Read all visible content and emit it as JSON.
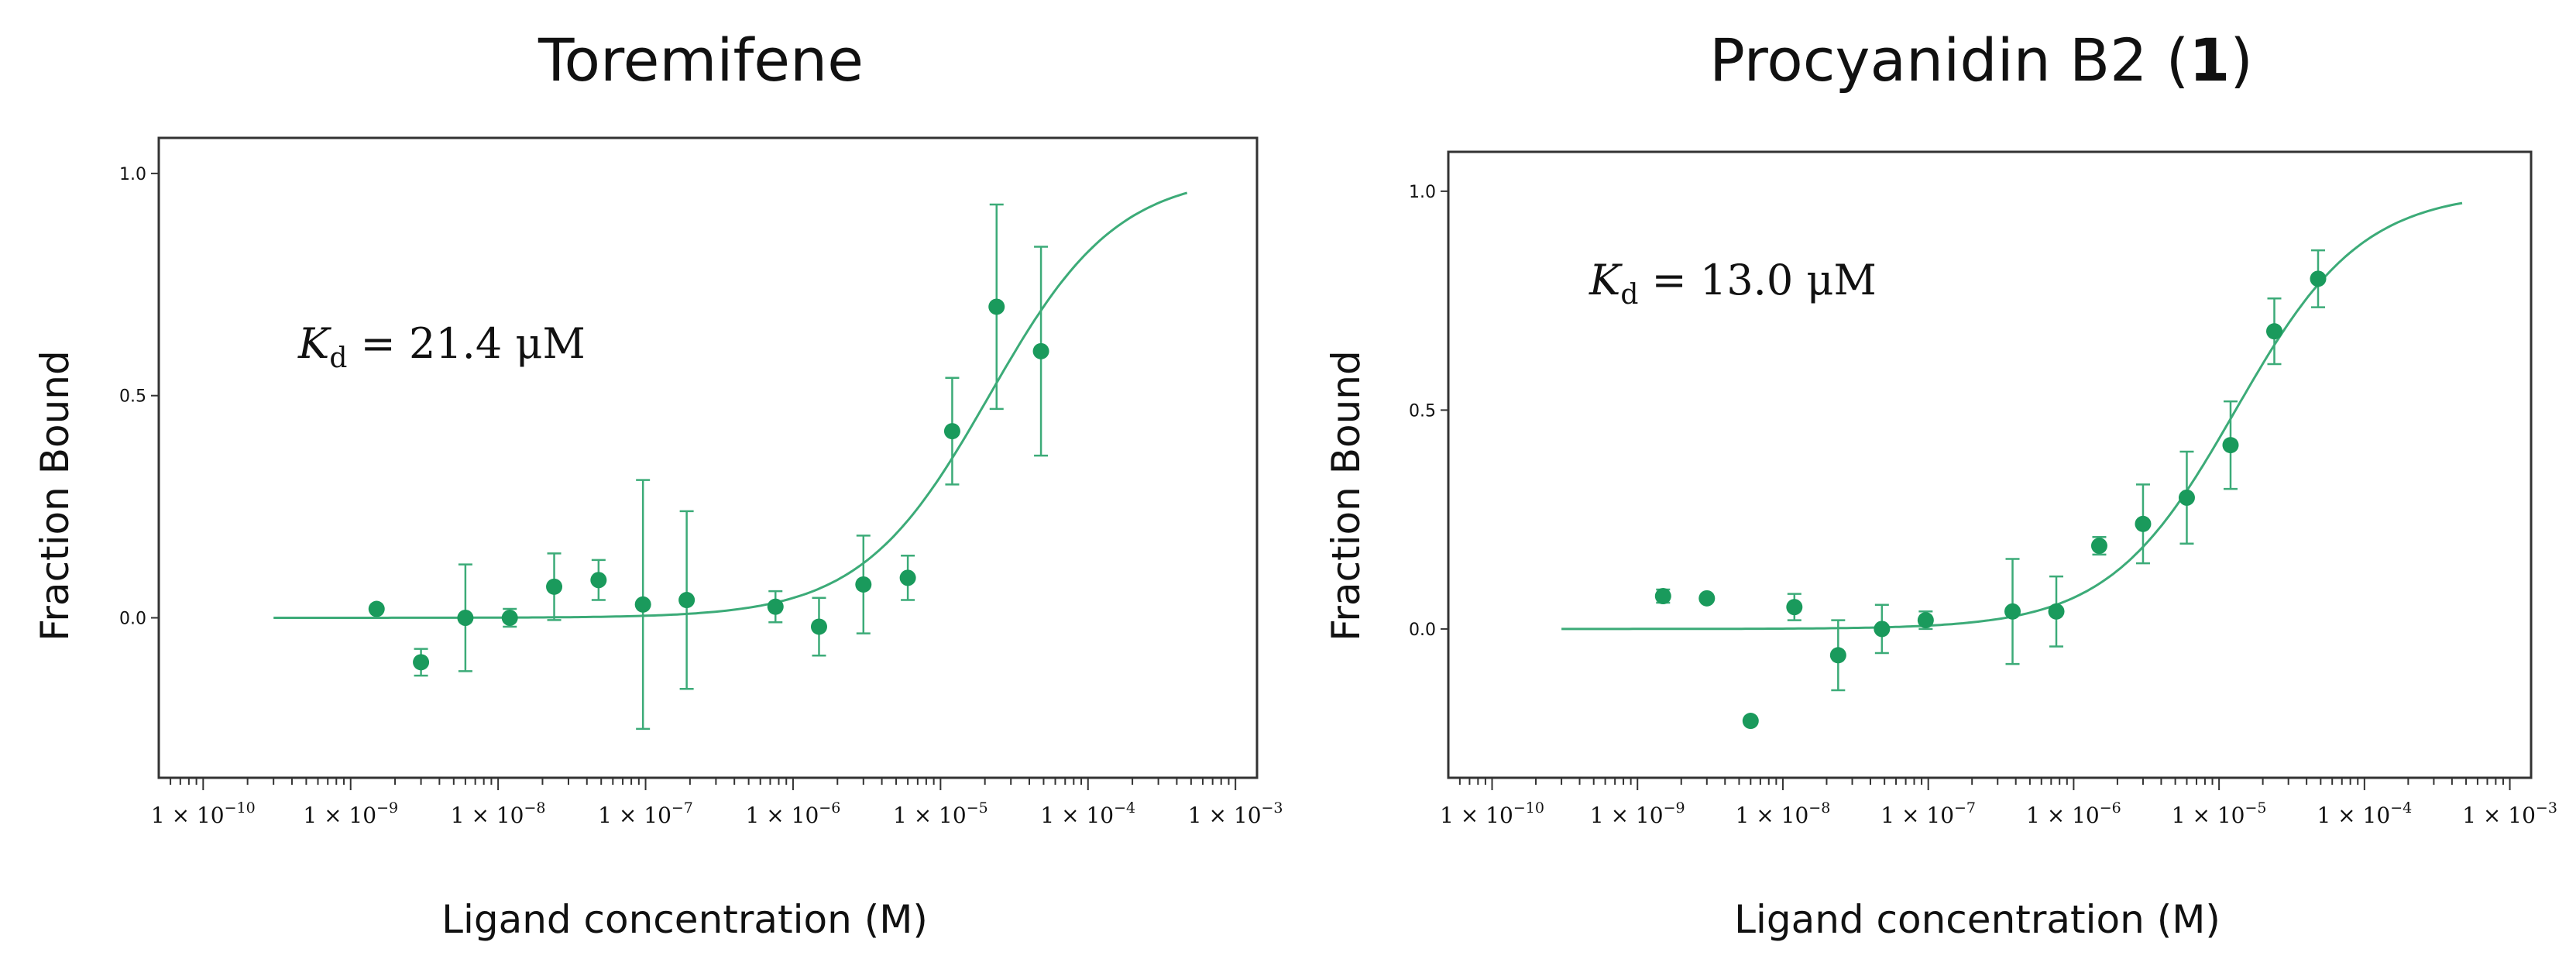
{
  "chart_data": [
    {
      "type": "scatter",
      "title": "Toremifene",
      "title_bold_suffix": "",
      "xlabel": "Ligand concentration (M)",
      "ylabel": "Fraction Bound",
      "x_scale": "log",
      "xlim": [
        5e-11,
        0.0014
      ],
      "ylim": [
        -0.36,
        1.08
      ],
      "yticks": [
        0.0,
        0.5,
        1.0
      ],
      "ytick_labels": [
        "0.0",
        "0.5",
        "1.0"
      ],
      "xticks": [
        1e-10,
        1e-09,
        1e-08,
        1e-07,
        1e-06,
        1e-05,
        0.0001,
        0.001
      ],
      "xtick_labels": [
        {
          "coef": "1 × 10",
          "exp": "−10"
        },
        {
          "coef": "1 × 10",
          "exp": "−9"
        },
        {
          "coef": "1 × 10",
          "exp": "−8"
        },
        {
          "coef": "1 × 10",
          "exp": "−7"
        },
        {
          "coef": "1 × 10",
          "exp": "−6"
        },
        {
          "coef": "1 × 10",
          "exp": "−5"
        },
        {
          "coef": "1 × 10",
          "exp": "−4"
        },
        {
          "coef": "1 × 10",
          "exp": "−3"
        }
      ],
      "kd_annotation": {
        "symbol": "K",
        "subscript": "d",
        "text": " = 21.4 μM"
      },
      "fit": {
        "model": "hill",
        "kd_M": 2.14e-05,
        "hill": 1.0,
        "x_range": [
          3e-10,
          0.00047
        ]
      },
      "color": "#1a9a5c",
      "fit_color": "#3cab78",
      "points": [
        {
          "x": 1.5e-09,
          "y": 0.02,
          "err": 0.0
        },
        {
          "x": 3e-09,
          "y": -0.1,
          "err": 0.03
        },
        {
          "x": 6e-09,
          "y": 0.0,
          "err": 0.12
        },
        {
          "x": 1.2e-08,
          "y": 0.0,
          "err": 0.02
        },
        {
          "x": 2.4e-08,
          "y": 0.07,
          "err": 0.075
        },
        {
          "x": 4.8e-08,
          "y": 0.085,
          "err": 0.045
        },
        {
          "x": 9.6e-08,
          "y": 0.03,
          "err": 0.28
        },
        {
          "x": 1.9e-07,
          "y": 0.04,
          "err": 0.2
        },
        {
          "x": 7.6e-07,
          "y": 0.025,
          "err": 0.035
        },
        {
          "x": 1.5e-06,
          "y": -0.02,
          "err": 0.065
        },
        {
          "x": 3e-06,
          "y": 0.075,
          "err": 0.11
        },
        {
          "x": 6e-06,
          "y": 0.09,
          "err": 0.05
        },
        {
          "x": 1.2e-05,
          "y": 0.42,
          "err": 0.12
        },
        {
          "x": 2.4e-05,
          "y": 0.7,
          "err": 0.23
        },
        {
          "x": 4.8e-05,
          "y": 0.6,
          "err": 0.235
        }
      ]
    },
    {
      "type": "scatter",
      "title": "Procyanidin B2 (",
      "title_bold_suffix": "1",
      "title_close": ")",
      "xlabel": "Ligand concentration (M)",
      "ylabel": "Fraction Bound",
      "x_scale": "log",
      "xlim": [
        5e-11,
        0.0014
      ],
      "ylim": [
        -0.34,
        1.09
      ],
      "yticks": [
        0.0,
        0.5,
        1.0
      ],
      "ytick_labels": [
        "0.0",
        "0.5",
        "1.0"
      ],
      "xticks": [
        1e-10,
        1e-09,
        1e-08,
        1e-07,
        1e-06,
        1e-05,
        0.0001,
        0.001
      ],
      "xtick_labels": [
        {
          "coef": "1 × 10",
          "exp": "−10"
        },
        {
          "coef": "1 × 10",
          "exp": "−9"
        },
        {
          "coef": "1 × 10",
          "exp": "−8"
        },
        {
          "coef": "1 × 10",
          "exp": "−7"
        },
        {
          "coef": "1 × 10",
          "exp": "−6"
        },
        {
          "coef": "1 × 10",
          "exp": "−5"
        },
        {
          "coef": "1 × 10",
          "exp": "−4"
        },
        {
          "coef": "1 × 10",
          "exp": "−3"
        }
      ],
      "kd_annotation": {
        "symbol": "K",
        "subscript": "d",
        "text": " = 13.0 μM"
      },
      "fit": {
        "model": "hill",
        "kd_M": 1.3e-05,
        "hill": 1.0,
        "x_range": [
          3e-10,
          0.00047
        ]
      },
      "color": "#1a9a5c",
      "fit_color": "#3cab78",
      "points": [
        {
          "x": 1.5e-09,
          "y": 0.075,
          "err": 0.015
        },
        {
          "x": 3e-09,
          "y": 0.07,
          "err": 0.0
        },
        {
          "x": 6e-09,
          "y": -0.21,
          "err": 0.0
        },
        {
          "x": 1.2e-08,
          "y": 0.05,
          "err": 0.03
        },
        {
          "x": 2.4e-08,
          "y": -0.06,
          "err": 0.08
        },
        {
          "x": 4.8e-08,
          "y": 0.0,
          "err": 0.055
        },
        {
          "x": 9.6e-08,
          "y": 0.02,
          "err": 0.02
        },
        {
          "x": 3.8e-07,
          "y": 0.04,
          "err": 0.12
        },
        {
          "x": 7.6e-07,
          "y": 0.04,
          "err": 0.08
        },
        {
          "x": 1.5e-06,
          "y": 0.19,
          "err": 0.02
        },
        {
          "x": 3e-06,
          "y": 0.24,
          "err": 0.09
        },
        {
          "x": 6e-06,
          "y": 0.3,
          "err": 0.105
        },
        {
          "x": 1.2e-05,
          "y": 0.42,
          "err": 0.1
        },
        {
          "x": 2.4e-05,
          "y": 0.68,
          "err": 0.075
        },
        {
          "x": 4.8e-05,
          "y": 0.8,
          "err": 0.065
        }
      ]
    }
  ]
}
